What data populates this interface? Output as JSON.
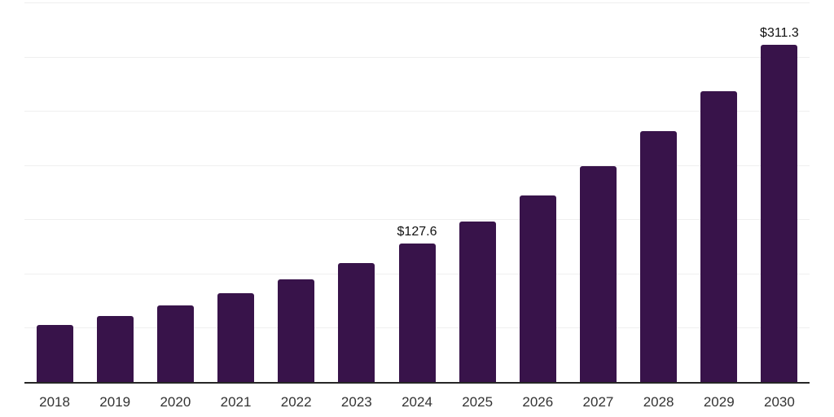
{
  "chart_data": {
    "type": "bar",
    "title": "",
    "xlabel": "",
    "ylabel": "",
    "categories": [
      "2018",
      "2019",
      "2020",
      "2021",
      "2022",
      "2023",
      "2024",
      "2025",
      "2026",
      "2027",
      "2028",
      "2029",
      "2030"
    ],
    "values": [
      52.3,
      60.7,
      70.4,
      81.7,
      94.8,
      110.0,
      127.6,
      148.0,
      171.7,
      199.3,
      231.2,
      268.3,
      311.3
    ],
    "data_labels": [
      "",
      "",
      "",
      "",
      "",
      "",
      "$127.6",
      "",
      "",
      "",
      "",
      "",
      "$311.3"
    ],
    "ylim": [
      0,
      350
    ],
    "gridline_step": 50,
    "grid": "horizontal-only",
    "legend": "none",
    "colors": {
      "bar": "#38134A",
      "axis_line": "#262626",
      "gridline": "#efefef",
      "year_label": "#333333",
      "data_label": "#111111",
      "background": "#ffffff"
    }
  }
}
